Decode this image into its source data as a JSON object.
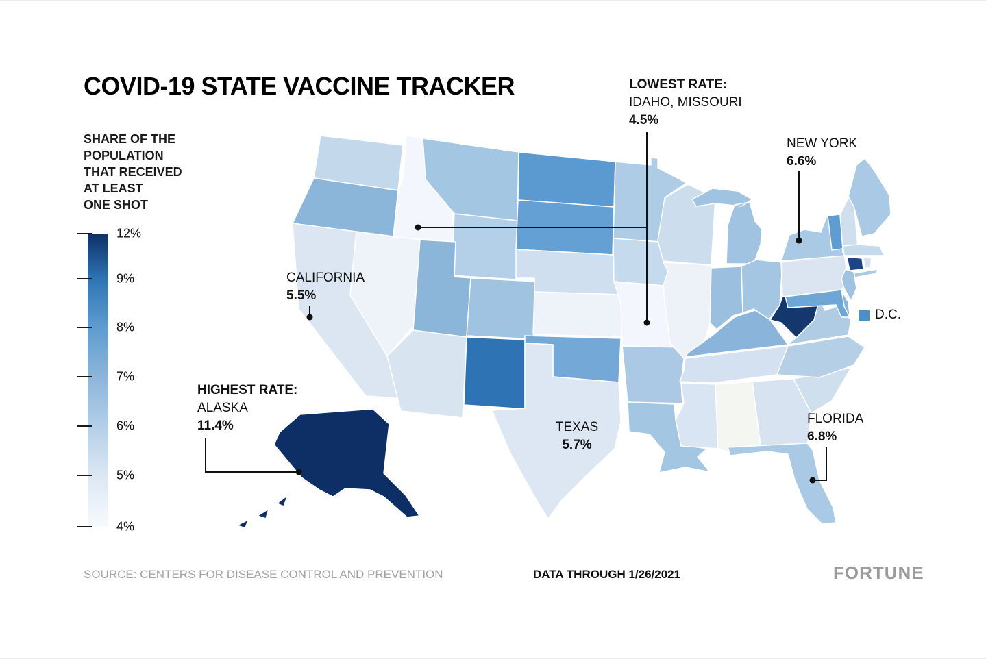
{
  "chart_data": {
    "type": "heatmap",
    "subtype": "us-state-choropleth",
    "title": "COVID-19 STATE VACCINE TRACKER",
    "legend": {
      "label_lines": [
        "SHARE OF THE",
        "POPULATION",
        "THAT RECEIVED",
        "AT LEAST",
        "ONE SHOT"
      ],
      "ticks": [
        {
          "label": "12%",
          "color": "#0d2f66"
        },
        {
          "label": "9%",
          "color": "#2e74b5"
        },
        {
          "label": "8%",
          "color": "#5e9cd1"
        },
        {
          "label": "7%",
          "color": "#8cb5da"
        },
        {
          "label": "6%",
          "color": "#b3cfe8"
        },
        {
          "label": "5%",
          "color": "#dce7f3"
        },
        {
          "label": "4%",
          "color": "#f7fafd"
        }
      ]
    },
    "known_values": {
      "ALASKA": 11.4,
      "IDAHO": 4.5,
      "MISSOURI": 4.5,
      "NEW YORK": 6.6,
      "CALIFORNIA": 5.5,
      "TEXAS": 5.7,
      "FLORIDA": 6.8
    },
    "annotations": {
      "lowest": {
        "heading": "LOWEST RATE:",
        "name": "IDAHO, MISSOURI",
        "value": "4.5%"
      },
      "highest": {
        "heading": "HIGHEST RATE:",
        "name": "ALASKA",
        "value": "11.4%"
      },
      "new_york": {
        "name": "NEW YORK",
        "value": "6.6%"
      },
      "california": {
        "name": "CALIFORNIA",
        "value": "5.5%"
      },
      "texas": {
        "name": "TEXAS",
        "value": "5.7%"
      },
      "florida": {
        "name": "FLORIDA",
        "value": "6.8%"
      },
      "dc": {
        "name": "D.C.",
        "color": "#4a90c9"
      }
    },
    "states": [
      {
        "id": "WA",
        "color": "#c4d8ec"
      },
      {
        "id": "OR",
        "color": "#8cb5da"
      },
      {
        "id": "CA",
        "color": "#dce6f2"
      },
      {
        "id": "NV",
        "color": "#eef3fa"
      },
      {
        "id": "ID",
        "color": "#f3f6fc"
      },
      {
        "id": "MT",
        "color": "#a3c6e3"
      },
      {
        "id": "WY",
        "color": "#b4cfe8"
      },
      {
        "id": "UT",
        "color": "#8cb5da"
      },
      {
        "id": "CO",
        "color": "#a0c3e1"
      },
      {
        "id": "AZ",
        "color": "#d9e4f1"
      },
      {
        "id": "NM",
        "color": "#2e74b5"
      },
      {
        "id": "ND",
        "color": "#5b99d1"
      },
      {
        "id": "SD",
        "color": "#64a0d4"
      },
      {
        "id": "NE",
        "color": "#cfdfef"
      },
      {
        "id": "KS",
        "color": "#eef3fa"
      },
      {
        "id": "OK",
        "color": "#74a8d6"
      },
      {
        "id": "TX",
        "color": "#dce7f3"
      },
      {
        "id": "MN",
        "color": "#afcce6"
      },
      {
        "id": "IA",
        "color": "#c6daee"
      },
      {
        "id": "MO",
        "color": "#f3f6fc"
      },
      {
        "id": "AR",
        "color": "#abc9e5"
      },
      {
        "id": "LA",
        "color": "#a3c6e3"
      },
      {
        "id": "WI",
        "color": "#ccdded"
      },
      {
        "id": "IL",
        "color": "#edf2f9"
      },
      {
        "id": "MI",
        "color": "#9fc3e1"
      },
      {
        "id": "IN",
        "color": "#9abfdf"
      },
      {
        "id": "OH",
        "color": "#a5c6e2"
      },
      {
        "id": "KY",
        "color": "#8ab4da"
      },
      {
        "id": "TN",
        "color": "#d3e1f0"
      },
      {
        "id": "MS",
        "color": "#d9e5f2"
      },
      {
        "id": "AL",
        "color": "#f4f6f2"
      },
      {
        "id": "GA",
        "color": "#d7e3f1"
      },
      {
        "id": "FL",
        "color": "#a9c9e5"
      },
      {
        "id": "SC",
        "color": "#cfdfee"
      },
      {
        "id": "NC",
        "color": "#b5cfe7"
      },
      {
        "id": "VA",
        "color": "#b0cce5"
      },
      {
        "id": "WV",
        "color": "#14386e"
      },
      {
        "id": "PA",
        "color": "#dbe5f2"
      },
      {
        "id": "NY",
        "color": "#a9c9e5"
      },
      {
        "id": "NJ",
        "color": "#9fc3e1"
      },
      {
        "id": "DE",
        "color": "#8ab4da"
      },
      {
        "id": "MD",
        "color": "#6ea6d5"
      },
      {
        "id": "VT",
        "color": "#5e9cd1"
      },
      {
        "id": "NH",
        "color": "#cfdfee"
      },
      {
        "id": "ME",
        "color": "#a9c9e5"
      },
      {
        "id": "MA",
        "color": "#c6daee"
      },
      {
        "id": "RI",
        "color": "#d7e3f1"
      },
      {
        "id": "CT",
        "color": "#1d4586"
      },
      {
        "id": "AK",
        "color": "#0d2f66"
      }
    ],
    "footer": {
      "source": "SOURCE: CENTERS FOR DISEASE CONTROL AND PREVENTION",
      "data_through": "DATA THROUGH 1/26/2021",
      "brand": "FORTUNE"
    }
  }
}
